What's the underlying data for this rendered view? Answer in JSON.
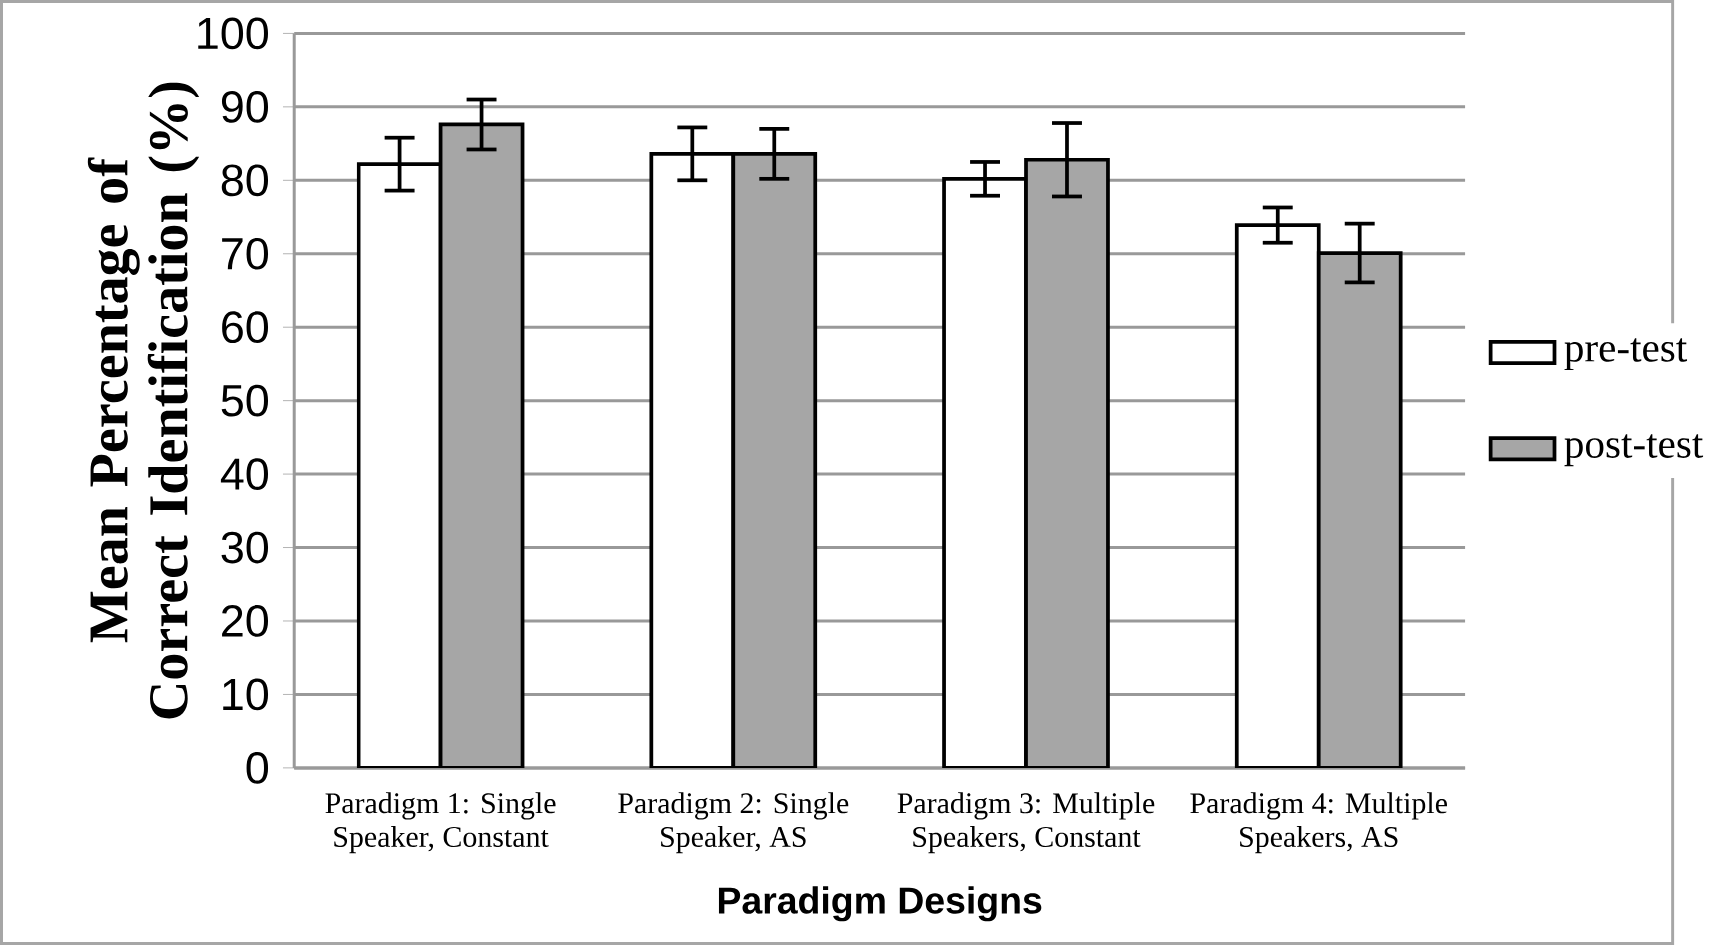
{
  "chart_data": {
    "type": "bar",
    "xlabel": "Paradigm Designs",
    "ylabel": "Mean Percentage of Correct Identification (%)",
    "categories": [
      "Paradigm 1: Single Speaker, Constant",
      "Paradigm 2: Single Speaker, AS",
      "Paradigm 3: Multiple Speakers, Constant",
      "Paradigm 4: Multiple Speakers, AS"
    ],
    "series": [
      {
        "name": "pre-test",
        "color": "#ffffff",
        "values": [
          82.2,
          83.6,
          80.2,
          73.9
        ],
        "errors": [
          3.6,
          3.6,
          2.3,
          2.4
        ]
      },
      {
        "name": "post-test",
        "color": "#a6a6a6",
        "values": [
          87.6,
          83.6,
          82.8,
          70.1
        ],
        "errors": [
          3.4,
          3.4,
          5,
          4
        ]
      }
    ],
    "ylim": [
      0,
      100
    ],
    "yticks": [
      0,
      10,
      20,
      30,
      40,
      50,
      60,
      70,
      80,
      90,
      100
    ],
    "grid": "y",
    "legend": "right"
  }
}
